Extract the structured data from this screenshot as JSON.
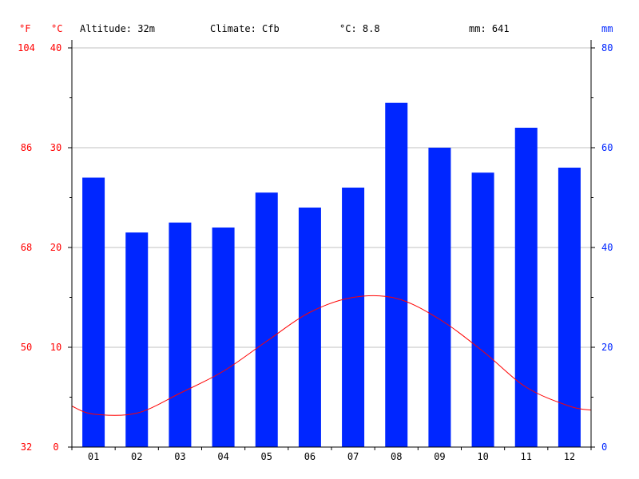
{
  "header": {
    "f_unit": "°F",
    "c_unit": "°C",
    "mm_unit": "mm",
    "altitude": "Altitude: 32m",
    "climate": "Climate: Cfb",
    "avg_temp": "°C: 8.8",
    "precip_total": "mm: 641"
  },
  "colors": {
    "temperature": "#ff0000",
    "precipitation": "#0026ff",
    "grid": "#c0c0c0",
    "axis": "#000000"
  },
  "chart_data": {
    "type": "bar",
    "categories": [
      "01",
      "02",
      "03",
      "04",
      "05",
      "06",
      "07",
      "08",
      "09",
      "10",
      "11",
      "12"
    ],
    "series": [
      {
        "type": "bar",
        "axis": "right",
        "values": [
          54,
          43,
          45,
          44,
          51,
          48,
          52,
          69,
          60,
          55,
          64,
          56
        ]
      },
      {
        "type": "line",
        "axis": "left",
        "values": [
          3.3,
          3.4,
          5.4,
          7.6,
          10.6,
          13.5,
          15.0,
          14.9,
          12.8,
          9.6,
          6.0,
          4.1
        ]
      }
    ],
    "y_left": {
      "ylim": [
        0,
        40
      ],
      "ticks": [
        0,
        10,
        20,
        30,
        40
      ]
    },
    "y_far_left": {
      "ticks": [
        "32",
        "50",
        "68",
        "86",
        "104"
      ]
    },
    "y_right": {
      "ylim": [
        0,
        80
      ],
      "ticks": [
        0,
        20,
        40,
        60,
        80
      ]
    },
    "grid": true
  }
}
